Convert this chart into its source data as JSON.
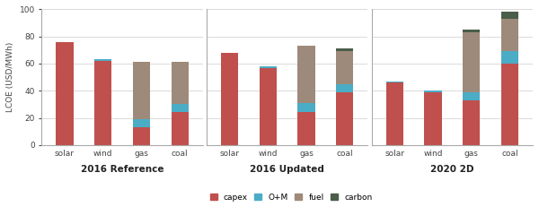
{
  "groups": [
    "2016 Reference",
    "2016 Updated",
    "2020 2D"
  ],
  "categories": [
    "solar",
    "wind",
    "gas",
    "coal"
  ],
  "colors": {
    "capex": "#c0504d",
    "o_and_m": "#4bacc6",
    "fuel": "#9e8a7a",
    "carbon": "#4a5e4a"
  },
  "stacks": {
    "2016 Reference": {
      "solar": {
        "capex": 76,
        "o_and_m": 0,
        "fuel": 0,
        "carbon": 0
      },
      "wind": {
        "capex": 62,
        "o_and_m": 1,
        "fuel": 0,
        "carbon": 0
      },
      "gas": {
        "capex": 13,
        "o_and_m": 6,
        "fuel": 42,
        "carbon": 0
      },
      "coal": {
        "capex": 24,
        "o_and_m": 6,
        "fuel": 31,
        "carbon": 0
      }
    },
    "2016 Updated": {
      "solar": {
        "capex": 68,
        "o_and_m": 0,
        "fuel": 0,
        "carbon": 0
      },
      "wind": {
        "capex": 57,
        "o_and_m": 1,
        "fuel": 0,
        "carbon": 0
      },
      "gas": {
        "capex": 24,
        "o_and_m": 7,
        "fuel": 42,
        "carbon": 0
      },
      "coal": {
        "capex": 39,
        "o_and_m": 6,
        "fuel": 24,
        "carbon": 2
      }
    },
    "2020 2D": {
      "solar": {
        "capex": 46,
        "o_and_m": 1,
        "fuel": 0,
        "carbon": 0
      },
      "wind": {
        "capex": 39,
        "o_and_m": 1,
        "fuel": 0,
        "carbon": 0
      },
      "gas": {
        "capex": 33,
        "o_and_m": 6,
        "fuel": 44,
        "carbon": 2
      },
      "coal": {
        "capex": 60,
        "o_and_m": 9,
        "fuel": 24,
        "carbon": 5
      }
    }
  },
  "ylabel": "LCOE (USD/MWh)",
  "ylim": [
    0,
    100
  ],
  "yticks": [
    0,
    20,
    40,
    60,
    80,
    100
  ],
  "legend_labels": [
    "capex",
    "O+M",
    "fuel",
    "carbon"
  ],
  "legend_keys": [
    "capex",
    "o_and_m",
    "fuel",
    "carbon"
  ],
  "background_color": "#ffffff",
  "bar_width": 0.45
}
